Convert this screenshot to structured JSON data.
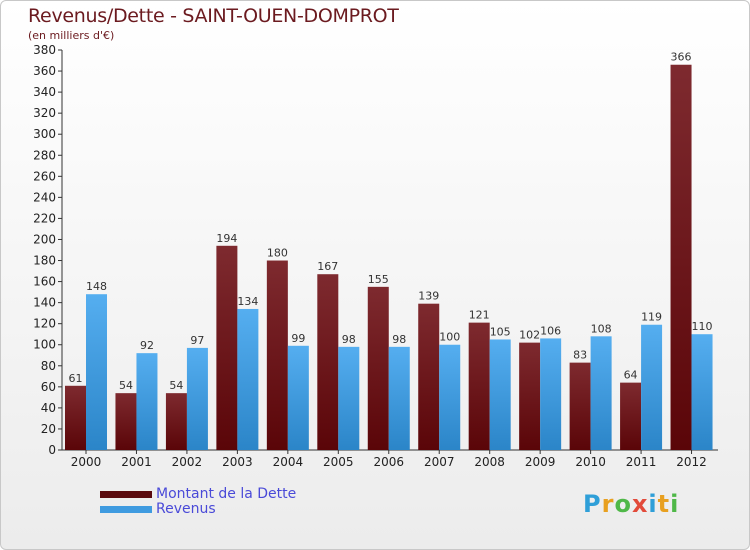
{
  "chart_data": {
    "type": "bar",
    "title": "Revenus/Dette - SAINT-OUEN-DOMPROT",
    "subtitle": "(en milliers d'€)",
    "categories": [
      "2000",
      "2001",
      "2002",
      "2003",
      "2004",
      "2005",
      "2006",
      "2007",
      "2008",
      "2009",
      "2010",
      "2011",
      "2012"
    ],
    "series": [
      {
        "name": "Montant de la Dette",
        "color": "#6b1216",
        "values": [
          61,
          54,
          54,
          194,
          180,
          167,
          155,
          139,
          121,
          102,
          83,
          64,
          366
        ]
      },
      {
        "name": "Revenus",
        "color": "#3f9be0",
        "values": [
          148,
          92,
          97,
          134,
          99,
          98,
          98,
          100,
          105,
          106,
          108,
          119,
          110
        ]
      }
    ],
    "ylim": [
      0,
      380
    ],
    "ytick_step": 20,
    "grid": false,
    "legend": "bottom-left"
  },
  "legend": {
    "dette_label": "Montant de la Dette",
    "revenus_label": "Revenus"
  },
  "logo": {
    "text": "Proxiti",
    "letters": [
      "P",
      "r",
      "o",
      "x",
      "i",
      "t",
      "i"
    ],
    "colors": [
      "#2f9fd8",
      "#e8a020",
      "#4fb848",
      "#e24a3a",
      "#2f9fd8",
      "#e8a020",
      "#4fb848"
    ]
  }
}
